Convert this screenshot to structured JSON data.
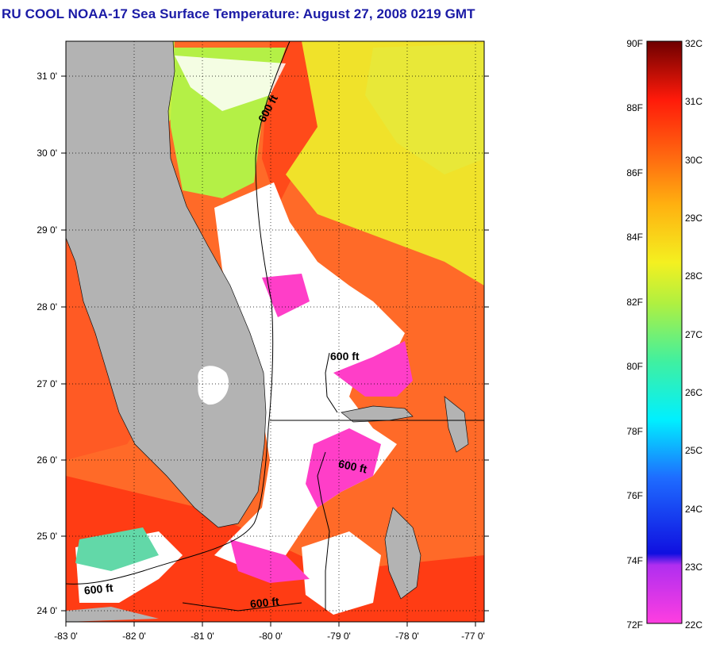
{
  "title": "RU COOL  NOAA-17  Sea Surface Temperature:  August 27, 2008 0219 GMT",
  "map": {
    "lat_ticks": [
      "31 0'",
      "30 0'",
      "29 0'",
      "28 0'",
      "27 0'",
      "26 0'",
      "25 0'",
      "24 0'"
    ],
    "lon_ticks": [
      "-83 0'",
      "-82 0'",
      "-81 0'",
      "-80 0'",
      "-79 0'",
      "-78 0'",
      "-77 0'"
    ],
    "contour_labels": [
      "600 ft",
      "600 ft",
      "600 ft",
      "600 ft",
      "600 ft"
    ]
  },
  "colorbar": {
    "fahrenheit": [
      "90F",
      "88F",
      "86F",
      "84F",
      "82F",
      "80F",
      "78F",
      "76F",
      "74F",
      "72F"
    ],
    "celsius": [
      "32C",
      "31C",
      "30C",
      "29C",
      "28C",
      "27C",
      "26C",
      "25C",
      "24C",
      "23C",
      "22C"
    ]
  },
  "colors": {
    "land": "#b3b3b3",
    "cloud": "#ffffff",
    "warm": "#ff5a1e",
    "hot": "#ff3a14",
    "yellow": "#f2e020",
    "green": "#a8f040",
    "magenta": "#ff3ec8"
  }
}
